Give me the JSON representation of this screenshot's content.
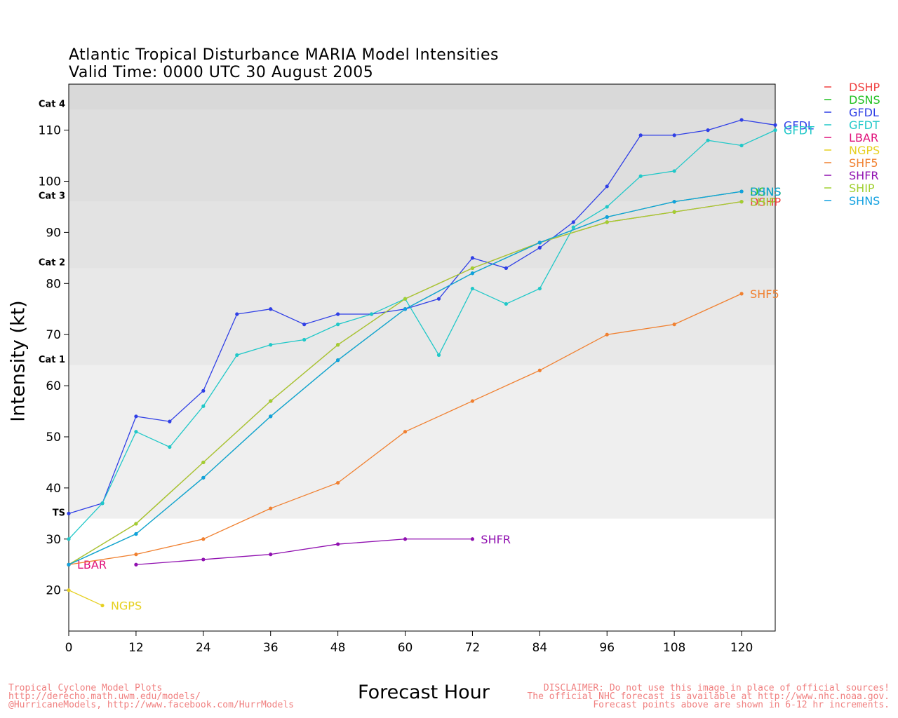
{
  "title": {
    "line1": "Atlantic Tropical Disturbance MARIA Model Intensities",
    "line2": "Valid Time: 0000 UTC 30 August 2005"
  },
  "footer": {
    "left": [
      "Tropical Cyclone Model Plots",
      "http://derecho.math.uwm.edu/models/",
      "@HurricaneModels, http://www.facebook.com/HurrModels"
    ],
    "right": [
      "DISCLAIMER: Do not use this image in place of official sources!",
      "The official NHC forecast is available at http://www.nhc.noaa.gov.",
      "Forecast points above are shown in 6-12 hr increments."
    ]
  },
  "chart_data": {
    "type": "line",
    "xlabel": "Forecast Hour",
    "ylabel": "Intensity (kt)",
    "xlim": [
      0,
      126
    ],
    "ylim": [
      12,
      119
    ],
    "x_ticks": [
      0,
      12,
      24,
      36,
      48,
      60,
      72,
      84,
      96,
      108,
      120
    ],
    "y_ticks": [
      20,
      30,
      40,
      50,
      60,
      70,
      80,
      90,
      100,
      110
    ],
    "category_bands": [
      {
        "label": "TS",
        "from": 34,
        "to": 64,
        "color": "#efefef"
      },
      {
        "label": "Cat 1",
        "from": 64,
        "to": 83,
        "color": "#e8e8e8"
      },
      {
        "label": "Cat 2",
        "from": 83,
        "to": 96,
        "color": "#e3e3e3"
      },
      {
        "label": "Cat 3",
        "from": 96,
        "to": 114,
        "color": "#dedede"
      },
      {
        "label": "Cat 4",
        "from": 114,
        "to": 119,
        "color": "#d9d9d9"
      }
    ],
    "legend_position": "right",
    "series": [
      {
        "name": "DSHP",
        "color": "#f04040",
        "x": [
          0,
          12,
          24,
          36,
          48,
          60,
          72,
          84,
          96,
          108,
          120
        ],
        "y": [
          25,
          33,
          45,
          57,
          68,
          77,
          83,
          88,
          92,
          94,
          96
        ],
        "end_label": "DSHP"
      },
      {
        "name": "DSNS",
        "color": "#20c020",
        "x": [
          0,
          12,
          24,
          36,
          48,
          60,
          72,
          84,
          96,
          108,
          120
        ],
        "y": [
          25,
          31,
          42,
          54,
          65,
          75,
          82,
          88,
          93,
          96,
          98
        ],
        "end_label": "DSNS"
      },
      {
        "name": "GFDL",
        "color": "#2f3fe6",
        "x": [
          0,
          6,
          12,
          18,
          24,
          30,
          36,
          42,
          48,
          54,
          60,
          66,
          72,
          78,
          84,
          90,
          96,
          102,
          108,
          114,
          120,
          126
        ],
        "y": [
          35,
          37,
          54,
          53,
          59,
          74,
          75,
          72,
          74,
          74,
          75,
          77,
          85,
          83,
          87,
          92,
          99,
          109,
          109,
          110,
          112,
          111
        ],
        "end_label": "GFDL"
      },
      {
        "name": "GFDT",
        "color": "#20c8c8",
        "x": [
          0,
          6,
          12,
          18,
          24,
          30,
          36,
          42,
          48,
          54,
          60,
          66,
          72,
          78,
          84,
          90,
          96,
          102,
          108,
          114,
          120,
          126
        ],
        "y": [
          30,
          37,
          51,
          48,
          56,
          66,
          68,
          69,
          72,
          74,
          77,
          66,
          79,
          76,
          79,
          91,
          95,
          101,
          102,
          108,
          107,
          110
        ],
        "end_label": "GFDT"
      },
      {
        "name": "LBAR",
        "color": "#e0107a",
        "x": [
          0
        ],
        "y": [
          25
        ],
        "end_label": "LBAR"
      },
      {
        "name": "NGPS",
        "color": "#e6d020",
        "x": [
          0,
          6
        ],
        "y": [
          20,
          17
        ],
        "end_label": "NGPS"
      },
      {
        "name": "SHF5",
        "color": "#f08030",
        "x": [
          0,
          12,
          24,
          36,
          48,
          60,
          72,
          84,
          96,
          108,
          120
        ],
        "y": [
          25,
          27,
          30,
          36,
          41,
          51,
          57,
          63,
          70,
          72,
          78
        ],
        "end_label": "SHF5"
      },
      {
        "name": "SHFR",
        "color": "#9010b0",
        "x": [
          12,
          24,
          36,
          48,
          60,
          72
        ],
        "y": [
          25,
          26,
          27,
          29,
          30,
          30
        ],
        "end_label": "SHFR"
      },
      {
        "name": "SHIP",
        "color": "#a0d030",
        "x": [
          0,
          12,
          24,
          36,
          48,
          60,
          72,
          84,
          96,
          108,
          120
        ],
        "y": [
          25,
          33,
          45,
          57,
          68,
          77,
          83,
          88,
          92,
          94,
          96
        ],
        "end_label": "SHIP"
      },
      {
        "name": "SHNS",
        "color": "#10a0e0",
        "x": [
          0,
          12,
          24,
          36,
          48,
          60,
          72,
          84,
          96,
          108,
          120
        ],
        "y": [
          25,
          31,
          42,
          54,
          65,
          75,
          82,
          88,
          93,
          96,
          98
        ],
        "end_label": "SHNS"
      }
    ]
  }
}
